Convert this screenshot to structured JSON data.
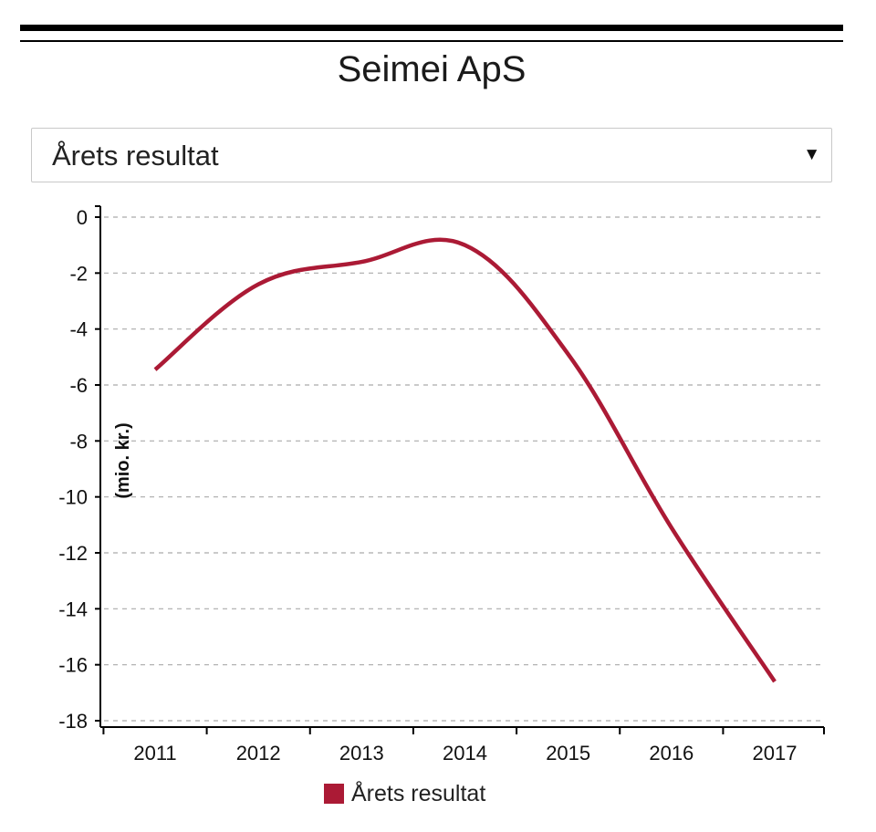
{
  "page": {
    "title": "Seimei ApS"
  },
  "selector": {
    "value": "Årets resultat",
    "arrow_glyph": "▼"
  },
  "chart_data": {
    "type": "line",
    "title": "",
    "xlabel": "",
    "ylabel": "(mio. kr.)",
    "x": [
      "2011",
      "2012",
      "2013",
      "2014",
      "2015",
      "2016",
      "2017"
    ],
    "series": [
      {
        "name": "Årets resultat",
        "color": "#ab1a35",
        "values": [
          -5.45,
          -2.4,
          -1.6,
          -1.0,
          -4.9,
          -11.1,
          -16.6
        ]
      }
    ],
    "ylim": [
      -18,
      0
    ],
    "yticks": [
      "0",
      "-2",
      "-4",
      "-6",
      "-8",
      "-10",
      "-12",
      "-14",
      "-16",
      "-18"
    ],
    "grid": true,
    "grid_style": "dashed",
    "legend_position": "bottom"
  }
}
